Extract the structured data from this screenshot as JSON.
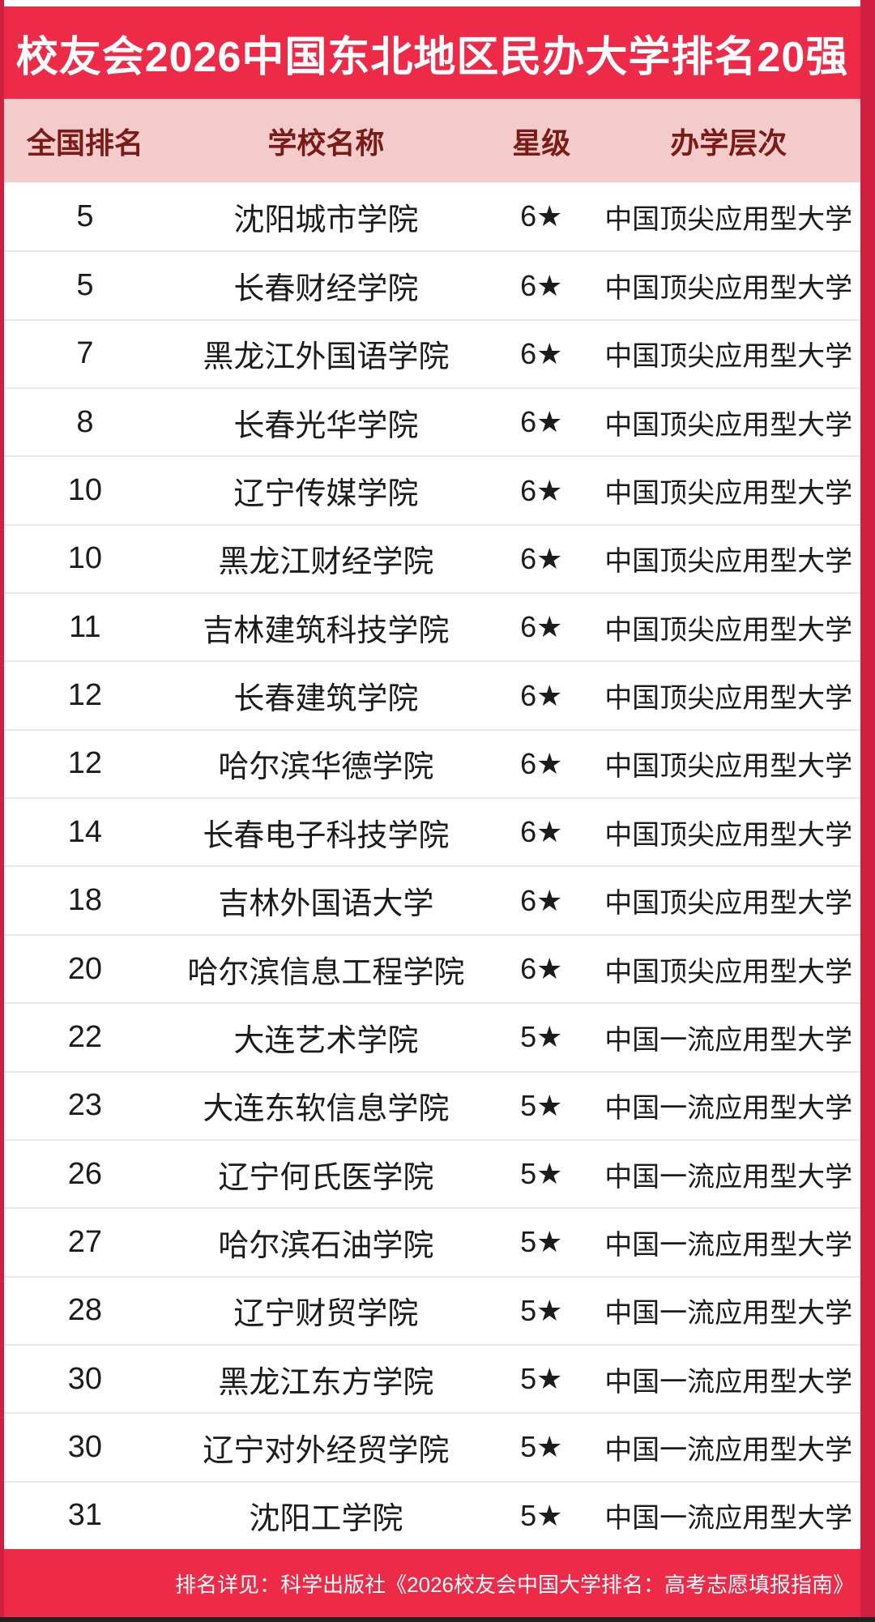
{
  "title": "校友会2026中国东北地区民办大学排名20强",
  "table": {
    "columns": [
      "全国排名",
      "学校名称",
      "星级",
      "办学层次"
    ],
    "rows": [
      {
        "rank": "5",
        "school": "沈阳城市学院",
        "star": "6★",
        "tier": "中国顶尖应用型大学"
      },
      {
        "rank": "5",
        "school": "长春财经学院",
        "star": "6★",
        "tier": "中国顶尖应用型大学"
      },
      {
        "rank": "7",
        "school": "黑龙江外国语学院",
        "star": "6★",
        "tier": "中国顶尖应用型大学"
      },
      {
        "rank": "8",
        "school": "长春光华学院",
        "star": "6★",
        "tier": "中国顶尖应用型大学"
      },
      {
        "rank": "10",
        "school": "辽宁传媒学院",
        "star": "6★",
        "tier": "中国顶尖应用型大学"
      },
      {
        "rank": "10",
        "school": "黑龙江财经学院",
        "star": "6★",
        "tier": "中国顶尖应用型大学"
      },
      {
        "rank": "11",
        "school": "吉林建筑科技学院",
        "star": "6★",
        "tier": "中国顶尖应用型大学"
      },
      {
        "rank": "12",
        "school": "长春建筑学院",
        "star": "6★",
        "tier": "中国顶尖应用型大学"
      },
      {
        "rank": "12",
        "school": "哈尔滨华德学院",
        "star": "6★",
        "tier": "中国顶尖应用型大学"
      },
      {
        "rank": "14",
        "school": "长春电子科技学院",
        "star": "6★",
        "tier": "中国顶尖应用型大学"
      },
      {
        "rank": "18",
        "school": "吉林外国语大学",
        "star": "6★",
        "tier": "中国顶尖应用型大学"
      },
      {
        "rank": "20",
        "school": "哈尔滨信息工程学院",
        "star": "6★",
        "tier": "中国顶尖应用型大学"
      },
      {
        "rank": "22",
        "school": "大连艺术学院",
        "star": "5★",
        "tier": "中国一流应用型大学"
      },
      {
        "rank": "23",
        "school": "大连东软信息学院",
        "star": "5★",
        "tier": "中国一流应用型大学"
      },
      {
        "rank": "26",
        "school": "辽宁何氏医学院",
        "star": "5★",
        "tier": "中国一流应用型大学"
      },
      {
        "rank": "27",
        "school": "哈尔滨石油学院",
        "star": "5★",
        "tier": "中国一流应用型大学"
      },
      {
        "rank": "28",
        "school": "辽宁财贸学院",
        "star": "5★",
        "tier": "中国一流应用型大学"
      },
      {
        "rank": "30",
        "school": "黑龙江东方学院",
        "star": "5★",
        "tier": "中国一流应用型大学"
      },
      {
        "rank": "30",
        "school": "辽宁对外经贸学院",
        "star": "5★",
        "tier": "中国一流应用型大学"
      },
      {
        "rank": "31",
        "school": "沈阳工学院",
        "star": "5★",
        "tier": "中国一流应用型大学"
      }
    ]
  },
  "footer": {
    "note": "排名详见：科学出版社《2026校友会中国大学排名：高考志愿填报指南》"
  },
  "colors": {
    "banner_red": "#ed2b48",
    "border_crimson": "#d11f40",
    "header_pink": "#f2cbca",
    "header_text": "#7a1b17",
    "row_text": "#1c1c1c",
    "separator": "#e9e9e9",
    "footer_red": "#ed2b48",
    "bottom_strip": "#212121",
    "title_text": "#ffffff",
    "footer_text": "#ffffff"
  },
  "chart_data": {
    "type": "table",
    "title": "校友会2026中国东北地区民办大学排名20强",
    "columns": [
      "全国排名",
      "学校名称",
      "星级",
      "办学层次"
    ],
    "rows": [
      [
        "5",
        "沈阳城市学院",
        "6★",
        "中国顶尖应用型大学"
      ],
      [
        "5",
        "长春财经学院",
        "6★",
        "中国顶尖应用型大学"
      ],
      [
        "7",
        "黑龙江外国语学院",
        "6★",
        "中国顶尖应用型大学"
      ],
      [
        "8",
        "长春光华学院",
        "6★",
        "中国顶尖应用型大学"
      ],
      [
        "10",
        "辽宁传媒学院",
        "6★",
        "中国顶尖应用型大学"
      ],
      [
        "10",
        "黑龙江财经学院",
        "6★",
        "中国顶尖应用型大学"
      ],
      [
        "11",
        "吉林建筑科技学院",
        "6★",
        "中国顶尖应用型大学"
      ],
      [
        "12",
        "长春建筑学院",
        "6★",
        "中国顶尖应用型大学"
      ],
      [
        "12",
        "哈尔滨华德学院",
        "6★",
        "中国顶尖应用型大学"
      ],
      [
        "14",
        "长春电子科技学院",
        "6★",
        "中国顶尖应用型大学"
      ],
      [
        "18",
        "吉林外国语大学",
        "6★",
        "中国顶尖应用型大学"
      ],
      [
        "20",
        "哈尔滨信息工程学院",
        "6★",
        "中国顶尖应用型大学"
      ],
      [
        "22",
        "大连艺术学院",
        "5★",
        "中国一流应用型大学"
      ],
      [
        "23",
        "大连东软信息学院",
        "5★",
        "中国一流应用型大学"
      ],
      [
        "26",
        "辽宁何氏医学院",
        "5★",
        "中国一流应用型大学"
      ],
      [
        "27",
        "哈尔滨石油学院",
        "5★",
        "中国一流应用型大学"
      ],
      [
        "28",
        "辽宁财贸学院",
        "5★",
        "中国一流应用型大学"
      ],
      [
        "30",
        "黑龙江东方学院",
        "5★",
        "中国一流应用型大学"
      ],
      [
        "30",
        "辽宁对外经贸学院",
        "5★",
        "中国一流应用型大学"
      ],
      [
        "31",
        "沈阳工学院",
        "5★",
        "中国一流应用型大学"
      ]
    ],
    "footnote": "排名详见：科学出版社《2026校友会中国大学排名：高考志愿填报指南》"
  }
}
